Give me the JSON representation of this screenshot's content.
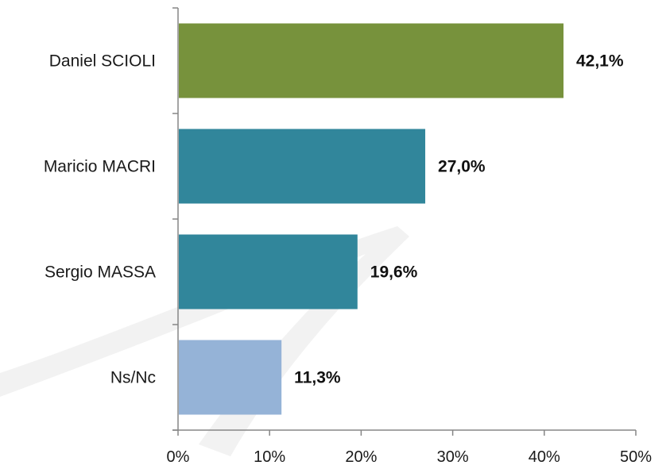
{
  "chart_data": {
    "type": "bar",
    "orientation": "horizontal",
    "title": "",
    "xlabel": "",
    "ylabel": "",
    "categories": [
      "Daniel SCIOLI",
      "Maricio MACRI",
      "Sergio MASSA",
      "Ns/Nc"
    ],
    "values": [
      42.1,
      27.0,
      19.6,
      11.3
    ],
    "value_labels": [
      "42,1%",
      "27,0%",
      "19,6%",
      "11,3%"
    ],
    "bar_colors": [
      "#77923c",
      "#31869b",
      "#31869b",
      "#95b3d7"
    ],
    "xlim": [
      0,
      50
    ],
    "x_ticks": [
      0,
      10,
      20,
      30,
      40,
      50
    ],
    "x_tick_labels": [
      "0%",
      "10%",
      "20%",
      "30%",
      "40%",
      "50%"
    ],
    "grid": false,
    "legend": "none",
    "axis_color": "#868686",
    "watermark_color": "#f2f2f2"
  }
}
